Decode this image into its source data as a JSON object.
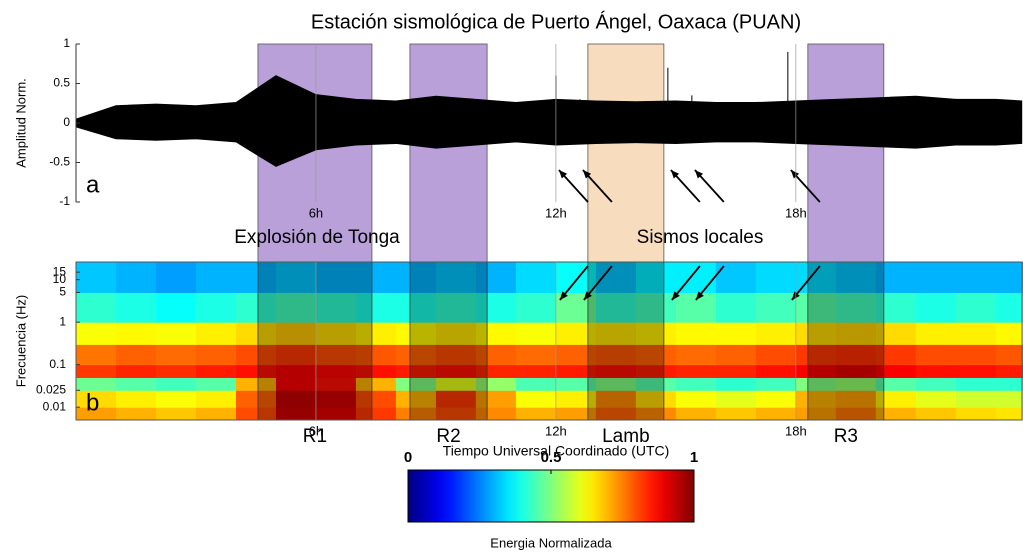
{
  "title": "Estación sismológica de Puerto Ángel, Oaxaca (PUAN)",
  "xlabel": "Tiempo Universal Coordinado (UTC)",
  "annotations": [
    "Explosión de Tonga",
    "Sismos locales"
  ],
  "regions": [
    {
      "start": 4.55,
      "end": 7.4,
      "label": "R1",
      "color": "#b9a0d9"
    },
    {
      "start": 8.35,
      "end": 10.28,
      "label": "R2",
      "color": "#b9a0d9"
    },
    {
      "start": 12.8,
      "end": 14.7,
      "label": "Lamb",
      "color": "#f8dcbe"
    },
    {
      "start": 18.3,
      "end": 20.2,
      "label": "R3",
      "color": "#b9a0d9"
    }
  ],
  "chart_data": [
    {
      "type": "band",
      "panel": "a",
      "ylabel": "Amplitud Norm.",
      "color": "#000000",
      "x": [
        0,
        1,
        2,
        3,
        4,
        5,
        6,
        7,
        8,
        9,
        10,
        11,
        12,
        13,
        14,
        15,
        16,
        17,
        18,
        19,
        20,
        21,
        22,
        23,
        23.65
      ],
      "upper": [
        0.05,
        0.22,
        0.24,
        0.22,
        0.26,
        0.6,
        0.36,
        0.3,
        0.28,
        0.34,
        0.3,
        0.26,
        0.3,
        0.28,
        0.27,
        0.28,
        0.26,
        0.26,
        0.28,
        0.3,
        0.32,
        0.34,
        0.3,
        0.3,
        0.28
      ],
      "lower": [
        -0.05,
        -0.2,
        -0.22,
        -0.2,
        -0.24,
        -0.55,
        -0.34,
        -0.28,
        -0.26,
        -0.32,
        -0.28,
        -0.24,
        -0.28,
        -0.26,
        -0.25,
        -0.26,
        -0.24,
        -0.24,
        -0.26,
        -0.28,
        -0.3,
        -0.32,
        -0.28,
        -0.28,
        -0.26
      ],
      "events_x": [
        12.0,
        12.6,
        14.8,
        15.4,
        17.8
      ],
      "events_amp": [
        0.6,
        0.3,
        0.7,
        0.35,
        0.9
      ],
      "xlim": [
        0,
        23.68
      ],
      "ylim": [
        -1,
        1
      ],
      "xticks": [
        {
          "value": 6,
          "label": "6h"
        },
        {
          "value": 12,
          "label": "12h"
        },
        {
          "value": 18,
          "label": "18h"
        }
      ],
      "yticks": [
        1,
        0.5,
        0,
        -0.5,
        -1
      ],
      "xgrid": true
    },
    {
      "type": "heatmap",
      "panel": "b",
      "ylabel": "Frecuencia (Hz)",
      "colormap": "jet",
      "ylog": true,
      "x": [
        0,
        1,
        2,
        3,
        4,
        5,
        6,
        7,
        8,
        9,
        10,
        11,
        12,
        13,
        14,
        15,
        16,
        17,
        18,
        19,
        20,
        21,
        22,
        23,
        23.68
      ],
      "y": [
        0.005,
        0.01,
        0.025,
        0.05,
        0.1,
        0.3,
        1,
        5,
        26
      ],
      "z": [
        [
          0.72,
          0.7,
          0.68,
          0.7,
          0.8,
          0.92,
          0.9,
          0.82,
          0.75,
          0.8,
          0.74,
          0.7,
          0.72,
          0.78,
          0.74,
          0.7,
          0.68,
          0.7,
          0.72,
          0.76,
          0.7,
          0.68,
          0.66,
          0.65
        ],
        [
          0.66,
          0.64,
          0.62,
          0.64,
          0.78,
          0.93,
          0.92,
          0.8,
          0.7,
          0.82,
          0.72,
          0.62,
          0.64,
          0.74,
          0.66,
          0.62,
          0.6,
          0.62,
          0.7,
          0.72,
          0.64,
          0.6,
          0.58,
          0.58
        ],
        [
          0.48,
          0.46,
          0.44,
          0.46,
          0.7,
          0.88,
          0.86,
          0.7,
          0.5,
          0.6,
          0.52,
          0.45,
          0.46,
          0.5,
          0.46,
          0.44,
          0.42,
          0.44,
          0.5,
          0.52,
          0.46,
          0.44,
          0.42,
          0.42
        ],
        [
          0.82,
          0.84,
          0.83,
          0.85,
          0.86,
          0.88,
          0.87,
          0.86,
          0.85,
          0.86,
          0.84,
          0.84,
          0.85,
          0.86,
          0.85,
          0.84,
          0.84,
          0.86,
          0.88,
          0.9,
          0.88,
          0.86,
          0.86,
          0.85
        ],
        [
          0.76,
          0.78,
          0.77,
          0.78,
          0.8,
          0.82,
          0.8,
          0.79,
          0.78,
          0.8,
          0.78,
          0.77,
          0.78,
          0.79,
          0.78,
          0.77,
          0.78,
          0.8,
          0.82,
          0.83,
          0.82,
          0.8,
          0.8,
          0.79
        ],
        [
          0.62,
          0.63,
          0.62,
          0.64,
          0.66,
          0.68,
          0.66,
          0.64,
          0.63,
          0.65,
          0.63,
          0.62,
          0.64,
          0.65,
          0.64,
          0.63,
          0.63,
          0.64,
          0.66,
          0.67,
          0.66,
          0.64,
          0.64,
          0.63
        ],
        [
          0.42,
          0.4,
          0.38,
          0.4,
          0.42,
          0.44,
          0.42,
          0.4,
          0.4,
          0.42,
          0.4,
          0.42,
          0.48,
          0.42,
          0.44,
          0.46,
          0.42,
          0.44,
          0.46,
          0.44,
          0.42,
          0.4,
          0.42,
          0.4
        ],
        [
          0.32,
          0.3,
          0.28,
          0.3,
          0.3,
          0.32,
          0.3,
          0.3,
          0.3,
          0.32,
          0.3,
          0.34,
          0.38,
          0.32,
          0.36,
          0.36,
          0.32,
          0.34,
          0.34,
          0.32,
          0.3,
          0.3,
          0.3,
          0.3
        ]
      ],
      "xlim": [
        0,
        23.68
      ],
      "ylim": [
        0.005,
        26
      ],
      "xticks": [
        {
          "value": 6,
          "label": "6h"
        },
        {
          "value": 12,
          "label": "12h"
        },
        {
          "value": 18,
          "label": "18h"
        }
      ],
      "yticks": [
        15,
        10,
        5,
        1,
        0.1,
        0.025,
        0.01
      ],
      "xgrid": true,
      "colorbar": {
        "label": "Energia Normalizada",
        "lim": [
          0,
          1
        ],
        "ticks": [
          0,
          0.5,
          1
        ]
      }
    }
  ]
}
